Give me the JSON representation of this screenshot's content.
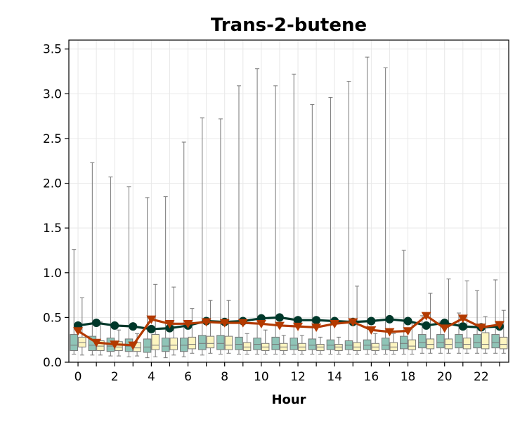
{
  "chart_data": {
    "type": "box+line",
    "title": "Trans-2-butene",
    "xlabel": "Hour",
    "ylabel": "",
    "xlim": [
      -0.5,
      23.5
    ],
    "ylim": [
      0.0,
      3.6
    ],
    "xticks": [
      0,
      2,
      4,
      6,
      8,
      10,
      12,
      14,
      16,
      18,
      20,
      22
    ],
    "yticks": [
      0.0,
      0.5,
      1.0,
      1.5,
      2.0,
      2.5,
      3.0,
      3.5
    ],
    "ytick_labels": [
      "0.0",
      "0.5",
      "1.0",
      "1.5",
      "2.0",
      "2.5",
      "3.0",
      "3.5"
    ],
    "grid": true,
    "colors": {
      "box_a_fill": "#8fc4b7",
      "box_b_fill": "#fdf5c0",
      "box_edge": "#777777",
      "line_a": "#00382a",
      "line_b": "#b33a00"
    },
    "boxes": {
      "series_a": [
        {
          "hour": 0,
          "whislo": 0.09,
          "q1": 0.13,
          "med": 0.19,
          "q3": 0.31,
          "whishi": 1.26
        },
        {
          "hour": 1,
          "whislo": 0.08,
          "q1": 0.13,
          "med": 0.19,
          "q3": 0.29,
          "whishi": 2.23
        },
        {
          "hour": 2,
          "whislo": 0.07,
          "q1": 0.12,
          "med": 0.18,
          "q3": 0.27,
          "whishi": 2.07
        },
        {
          "hour": 3,
          "whislo": 0.06,
          "q1": 0.12,
          "med": 0.18,
          "q3": 0.26,
          "whishi": 1.96
        },
        {
          "hour": 4,
          "whislo": 0.05,
          "q1": 0.11,
          "med": 0.17,
          "q3": 0.26,
          "whishi": 1.84
        },
        {
          "hour": 5,
          "whislo": 0.05,
          "q1": 0.12,
          "med": 0.18,
          "q3": 0.27,
          "whishi": 1.85
        },
        {
          "hour": 6,
          "whislo": 0.06,
          "q1": 0.12,
          "med": 0.19,
          "q3": 0.27,
          "whishi": 2.46
        },
        {
          "hour": 7,
          "whislo": 0.08,
          "q1": 0.14,
          "med": 0.21,
          "q3": 0.3,
          "whishi": 2.73
        },
        {
          "hour": 8,
          "whislo": 0.09,
          "q1": 0.14,
          "med": 0.21,
          "q3": 0.3,
          "whishi": 2.72
        },
        {
          "hour": 9,
          "whislo": 0.09,
          "q1": 0.14,
          "med": 0.2,
          "q3": 0.28,
          "whishi": 3.09
        },
        {
          "hour": 10,
          "whislo": 0.09,
          "q1": 0.14,
          "med": 0.2,
          "q3": 0.27,
          "whishi": 3.28
        },
        {
          "hour": 11,
          "whislo": 0.09,
          "q1": 0.14,
          "med": 0.2,
          "q3": 0.28,
          "whishi": 3.09
        },
        {
          "hour": 12,
          "whislo": 0.09,
          "q1": 0.14,
          "med": 0.19,
          "q3": 0.27,
          "whishi": 3.22
        },
        {
          "hour": 13,
          "whislo": 0.09,
          "q1": 0.14,
          "med": 0.19,
          "q3": 0.26,
          "whishi": 2.88
        },
        {
          "hour": 14,
          "whislo": 0.09,
          "q1": 0.14,
          "med": 0.19,
          "q3": 0.25,
          "whishi": 2.96
        },
        {
          "hour": 15,
          "whislo": 0.09,
          "q1": 0.14,
          "med": 0.19,
          "q3": 0.24,
          "whishi": 3.14
        },
        {
          "hour": 16,
          "whislo": 0.09,
          "q1": 0.14,
          "med": 0.19,
          "q3": 0.25,
          "whishi": 3.41
        },
        {
          "hour": 17,
          "whislo": 0.09,
          "q1": 0.14,
          "med": 0.19,
          "q3": 0.27,
          "whishi": 3.29
        },
        {
          "hour": 18,
          "whislo": 0.09,
          "q1": 0.15,
          "med": 0.21,
          "q3": 0.29,
          "whishi": 1.25
        },
        {
          "hour": 19,
          "whislo": 0.1,
          "q1": 0.16,
          "med": 0.22,
          "q3": 0.31,
          "whishi": 0.52
        },
        {
          "hour": 20,
          "whislo": 0.1,
          "q1": 0.16,
          "med": 0.22,
          "q3": 0.31,
          "whishi": 0.46
        },
        {
          "hour": 21,
          "whislo": 0.1,
          "q1": 0.16,
          "med": 0.22,
          "q3": 0.31,
          "whishi": 0.55
        },
        {
          "hour": 22,
          "whislo": 0.1,
          "q1": 0.16,
          "med": 0.22,
          "q3": 0.31,
          "whishi": 0.8
        },
        {
          "hour": 23,
          "whislo": 0.1,
          "q1": 0.16,
          "med": 0.22,
          "q3": 0.31,
          "whishi": 0.92
        }
      ],
      "series_b": [
        {
          "hour": 0,
          "whislo": 0.08,
          "q1": 0.17,
          "med": 0.22,
          "q3": 0.28,
          "whishi": 0.72
        },
        {
          "hour": 1,
          "whislo": 0.08,
          "q1": 0.13,
          "med": 0.18,
          "q3": 0.24,
          "whishi": 0.45
        },
        {
          "hour": 2,
          "whislo": 0.07,
          "q1": 0.13,
          "med": 0.17,
          "q3": 0.23,
          "whishi": 0.36
        },
        {
          "hour": 3,
          "whislo": 0.07,
          "q1": 0.12,
          "med": 0.16,
          "q3": 0.22,
          "whishi": 0.32
        },
        {
          "hour": 4,
          "whislo": 0.06,
          "q1": 0.14,
          "med": 0.19,
          "q3": 0.31,
          "whishi": 0.87
        },
        {
          "hour": 5,
          "whislo": 0.08,
          "q1": 0.14,
          "med": 0.19,
          "q3": 0.27,
          "whishi": 0.84
        },
        {
          "hour": 6,
          "whislo": 0.1,
          "q1": 0.15,
          "med": 0.2,
          "q3": 0.28,
          "whishi": 0.6
        },
        {
          "hour": 7,
          "whislo": 0.1,
          "q1": 0.16,
          "med": 0.21,
          "q3": 0.29,
          "whishi": 0.69
        },
        {
          "hour": 8,
          "whislo": 0.1,
          "q1": 0.14,
          "med": 0.19,
          "q3": 0.29,
          "whishi": 0.69
        },
        {
          "hour": 9,
          "whislo": 0.09,
          "q1": 0.13,
          "med": 0.17,
          "q3": 0.22,
          "whishi": 0.32
        },
        {
          "hour": 10,
          "whislo": 0.09,
          "q1": 0.13,
          "med": 0.17,
          "q3": 0.21,
          "whishi": 0.36
        },
        {
          "hour": 11,
          "whislo": 0.09,
          "q1": 0.13,
          "med": 0.17,
          "q3": 0.21,
          "whishi": 0.3
        },
        {
          "hour": 12,
          "whislo": 0.09,
          "q1": 0.13,
          "med": 0.17,
          "q3": 0.21,
          "whishi": 0.3
        },
        {
          "hour": 13,
          "whislo": 0.09,
          "q1": 0.13,
          "med": 0.17,
          "q3": 0.2,
          "whishi": 0.28
        },
        {
          "hour": 14,
          "whislo": 0.09,
          "q1": 0.13,
          "med": 0.17,
          "q3": 0.2,
          "whishi": 0.28
        },
        {
          "hour": 15,
          "whislo": 0.09,
          "q1": 0.13,
          "med": 0.17,
          "q3": 0.22,
          "whishi": 0.85
        },
        {
          "hour": 16,
          "whislo": 0.09,
          "q1": 0.13,
          "med": 0.17,
          "q3": 0.21,
          "whishi": 0.32
        },
        {
          "hour": 17,
          "whislo": 0.09,
          "q1": 0.13,
          "med": 0.17,
          "q3": 0.22,
          "whishi": 0.32
        },
        {
          "hour": 18,
          "whislo": 0.09,
          "q1": 0.14,
          "med": 0.18,
          "q3": 0.25,
          "whishi": 0.45
        },
        {
          "hour": 19,
          "whislo": 0.1,
          "q1": 0.15,
          "med": 0.2,
          "q3": 0.26,
          "whishi": 0.77
        },
        {
          "hour": 20,
          "whislo": 0.1,
          "q1": 0.15,
          "med": 0.2,
          "q3": 0.26,
          "whishi": 0.93
        },
        {
          "hour": 21,
          "whislo": 0.1,
          "q1": 0.15,
          "med": 0.2,
          "q3": 0.27,
          "whishi": 0.91
        },
        {
          "hour": 22,
          "whislo": 0.1,
          "q1": 0.15,
          "med": 0.2,
          "q3": 0.33,
          "whishi": 0.51
        },
        {
          "hour": 23,
          "whislo": 0.1,
          "q1": 0.15,
          "med": 0.2,
          "q3": 0.28,
          "whishi": 0.58
        }
      ]
    },
    "series": [
      {
        "marker": "circle",
        "color": "#00382a",
        "x": [
          0,
          1,
          2,
          3,
          4,
          5,
          6,
          7,
          8,
          9,
          10,
          11,
          12,
          13,
          14,
          15,
          16,
          17,
          18,
          19,
          20,
          21,
          22,
          23
        ],
        "values": [
          0.41,
          0.44,
          0.41,
          0.4,
          0.37,
          0.38,
          0.41,
          0.46,
          0.45,
          0.46,
          0.49,
          0.5,
          0.47,
          0.47,
          0.46,
          0.45,
          0.46,
          0.48,
          0.46,
          0.41,
          0.44,
          0.4,
          0.39,
          0.4
        ]
      },
      {
        "marker": "triangle-down",
        "color": "#b33a00",
        "x": [
          0,
          1,
          2,
          3,
          4,
          5,
          6,
          7,
          8,
          9,
          10,
          11,
          12,
          13,
          14,
          15,
          16,
          17,
          18,
          19,
          20,
          21,
          22,
          23
        ],
        "values": [
          0.35,
          0.22,
          0.2,
          0.19,
          0.48,
          0.43,
          0.43,
          0.45,
          0.44,
          0.44,
          0.43,
          0.41,
          0.4,
          0.39,
          0.43,
          0.45,
          0.36,
          0.34,
          0.35,
          0.52,
          0.38,
          0.49,
          0.39,
          0.42
        ]
      }
    ]
  }
}
